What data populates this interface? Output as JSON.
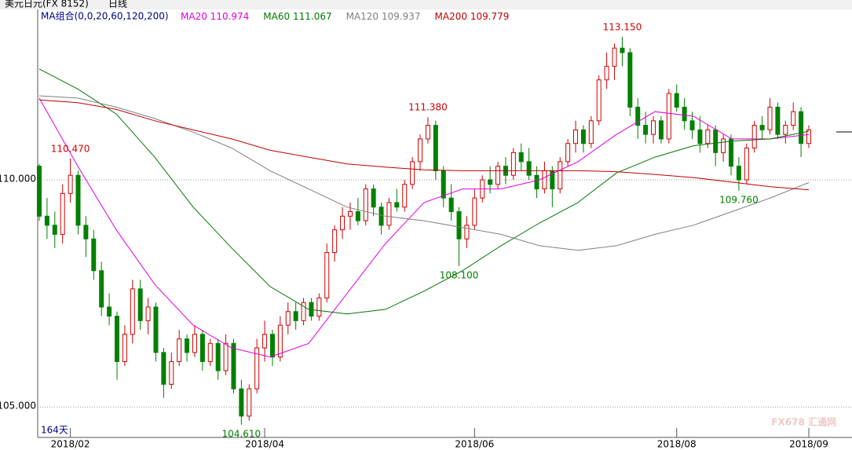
{
  "header": {
    "symbol": "美元日元(FX 8152)",
    "period": "日线",
    "ma_group": "MA组合(0,0,20,60,120,200)",
    "bar_count": "164天",
    "watermark": "FX678 汇通网"
  },
  "chart_data": {
    "type": "candlestick",
    "ylim": [
      104.33,
      113.44
    ],
    "yticks": [
      {
        "value": 110,
        "label": "110.000"
      },
      {
        "value": 105,
        "label": "105.000"
      }
    ],
    "xlim": [
      0,
      99
    ],
    "xticks": [
      {
        "value": 4,
        "label": "2018/02"
      },
      {
        "value": 29,
        "label": "2018/04"
      },
      {
        "value": 56,
        "label": "2018/06"
      },
      {
        "value": 82,
        "label": "2018/08"
      },
      {
        "value": 99,
        "label": "2018/09"
      }
    ],
    "up_color": "#d00000",
    "down_color": "#008000",
    "grid": true,
    "ohlc": [
      [
        110.3,
        110.35,
        109.1,
        109.2
      ],
      [
        109.2,
        109.6,
        108.7,
        109.0
      ],
      [
        109.0,
        109.3,
        108.5,
        108.8
      ],
      [
        108.8,
        109.9,
        108.6,
        109.7
      ],
      [
        109.7,
        110.47,
        109.5,
        110.1
      ],
      [
        110.1,
        110.2,
        108.8,
        109.0
      ],
      [
        109.0,
        109.2,
        108.3,
        108.7
      ],
      [
        108.7,
        108.9,
        107.8,
        108.0
      ],
      [
        108.0,
        108.2,
        107.0,
        107.2
      ],
      [
        107.2,
        107.5,
        106.8,
        107.0
      ],
      [
        107.0,
        107.1,
        105.6,
        106.0
      ],
      [
        106.0,
        106.8,
        105.9,
        106.6
      ],
      [
        106.6,
        107.8,
        106.4,
        107.6
      ],
      [
        107.6,
        107.8,
        106.7,
        106.9
      ],
      [
        106.9,
        107.4,
        106.6,
        107.2
      ],
      [
        107.2,
        107.3,
        106.0,
        106.2
      ],
      [
        106.2,
        106.3,
        105.2,
        105.5
      ],
      [
        105.5,
        106.2,
        105.4,
        106.0
      ],
      [
        106.0,
        106.7,
        105.9,
        106.5
      ],
      [
        106.5,
        106.6,
        106.0,
        106.2
      ],
      [
        106.2,
        106.8,
        106.1,
        106.6
      ],
      [
        106.6,
        106.7,
        105.8,
        106.0
      ],
      [
        106.0,
        106.5,
        105.9,
        106.4
      ],
      [
        106.4,
        106.5,
        105.6,
        105.8
      ],
      [
        105.8,
        106.6,
        105.7,
        106.4
      ],
      [
        106.4,
        106.5,
        105.3,
        105.4
      ],
      [
        105.4,
        105.6,
        104.61,
        104.8
      ],
      [
        104.8,
        105.5,
        104.7,
        105.4
      ],
      [
        105.4,
        106.5,
        105.3,
        106.3
      ],
      [
        106.3,
        106.9,
        106.0,
        106.6
      ],
      [
        106.6,
        106.7,
        105.9,
        106.1
      ],
      [
        106.1,
        107.0,
        106.0,
        106.8
      ],
      [
        106.8,
        107.3,
        106.6,
        107.1
      ],
      [
        107.1,
        107.3,
        106.7,
        106.9
      ],
      [
        106.9,
        107.4,
        106.8,
        107.3
      ],
      [
        107.3,
        107.4,
        106.9,
        107.0
      ],
      [
        107.0,
        107.5,
        106.9,
        107.4
      ],
      [
        107.4,
        108.6,
        107.3,
        108.4
      ],
      [
        108.4,
        109.0,
        108.2,
        108.9
      ],
      [
        108.9,
        109.4,
        108.7,
        109.2
      ],
      [
        109.2,
        109.5,
        108.9,
        109.3
      ],
      [
        109.3,
        109.6,
        109.0,
        109.1
      ],
      [
        109.1,
        109.9,
        109.0,
        109.8
      ],
      [
        109.8,
        109.9,
        109.2,
        109.4
      ],
      [
        109.4,
        109.5,
        108.8,
        109.0
      ],
      [
        109.0,
        109.6,
        108.9,
        109.5
      ],
      [
        109.5,
        109.8,
        109.3,
        109.4
      ],
      [
        109.4,
        110.0,
        109.3,
        109.9
      ],
      [
        109.9,
        110.5,
        109.8,
        110.4
      ],
      [
        110.4,
        111.0,
        110.2,
        110.9
      ],
      [
        110.9,
        111.38,
        110.8,
        111.2
      ],
      [
        111.2,
        111.3,
        110.0,
        110.2
      ],
      [
        110.2,
        110.3,
        109.4,
        109.6
      ],
      [
        109.6,
        109.9,
        109.1,
        109.3
      ],
      [
        109.3,
        109.4,
        108.1,
        108.7
      ],
      [
        108.7,
        109.2,
        108.5,
        109.0
      ],
      [
        109.0,
        109.8,
        108.9,
        109.6
      ],
      [
        109.6,
        110.1,
        109.5,
        110.0
      ],
      [
        110.0,
        110.3,
        109.7,
        109.9
      ],
      [
        109.9,
        110.4,
        109.8,
        110.3
      ],
      [
        110.3,
        110.5,
        109.9,
        110.1
      ],
      [
        110.1,
        110.7,
        110.0,
        110.6
      ],
      [
        110.6,
        110.8,
        110.2,
        110.4
      ],
      [
        110.4,
        110.7,
        110.0,
        110.1
      ],
      [
        110.1,
        110.3,
        109.6,
        109.8
      ],
      [
        109.8,
        110.4,
        109.7,
        110.2
      ],
      [
        110.2,
        110.3,
        109.4,
        109.8
      ],
      [
        109.8,
        110.5,
        109.7,
        110.4
      ],
      [
        110.4,
        110.9,
        110.3,
        110.8
      ],
      [
        110.8,
        111.3,
        110.6,
        111.1
      ],
      [
        111.1,
        111.2,
        110.6,
        110.8
      ],
      [
        110.8,
        111.4,
        110.7,
        111.3
      ],
      [
        111.3,
        112.3,
        111.2,
        112.2
      ],
      [
        112.2,
        112.8,
        112.0,
        112.5
      ],
      [
        112.5,
        113.0,
        112.2,
        112.9
      ],
      [
        112.9,
        113.15,
        112.5,
        112.8
      ],
      [
        112.8,
        112.9,
        111.4,
        111.6
      ],
      [
        111.6,
        111.8,
        110.9,
        111.2
      ],
      [
        111.2,
        111.5,
        110.8,
        111.0
      ],
      [
        111.0,
        111.4,
        110.8,
        111.3
      ],
      [
        111.3,
        111.4,
        110.8,
        110.9
      ],
      [
        110.9,
        112.0,
        110.8,
        111.9
      ],
      [
        111.9,
        112.1,
        111.5,
        111.6
      ],
      [
        111.6,
        111.8,
        111.1,
        111.3
      ],
      [
        111.3,
        111.5,
        110.9,
        111.1
      ],
      [
        111.1,
        111.4,
        110.6,
        110.8
      ],
      [
        110.8,
        111.2,
        110.7,
        111.1
      ],
      [
        111.1,
        111.2,
        110.3,
        110.6
      ],
      [
        110.6,
        111.0,
        110.4,
        110.9
      ],
      [
        110.9,
        111.0,
        110.1,
        110.3
      ],
      [
        110.3,
        110.5,
        109.76,
        110.0
      ],
      [
        110.0,
        110.8,
        109.9,
        110.7
      ],
      [
        110.7,
        111.3,
        110.6,
        111.2
      ],
      [
        111.2,
        111.4,
        110.9,
        111.1
      ],
      [
        111.1,
        111.8,
        111.0,
        111.6
      ],
      [
        111.6,
        111.7,
        110.9,
        111.0
      ],
      [
        111.0,
        111.3,
        110.8,
        111.2
      ],
      [
        111.2,
        111.7,
        111.1,
        111.5
      ],
      [
        111.5,
        111.6,
        110.5,
        110.8
      ],
      [
        110.8,
        111.2,
        110.7,
        111.1
      ]
    ],
    "annotations": [
      {
        "index": 4,
        "value": 110.47,
        "label": "110.470",
        "side": "above",
        "color": "#d00000"
      },
      {
        "index": 26,
        "value": 104.61,
        "label": "104.610",
        "side": "below",
        "color": "#008000"
      },
      {
        "index": 50,
        "value": 111.38,
        "label": "111.380",
        "side": "above",
        "color": "#d00000"
      },
      {
        "index": 54,
        "value": 108.1,
        "label": "108.100",
        "side": "below",
        "color": "#008000"
      },
      {
        "index": 75,
        "value": 113.15,
        "label": "113.150",
        "side": "above",
        "color": "#d00000"
      },
      {
        "index": 90,
        "value": 109.76,
        "label": "109.760",
        "side": "below",
        "color": "#008000"
      }
    ],
    "series": [
      {
        "name": "MA20",
        "last": 110.974,
        "color": "#e000e0",
        "values": [
          111.8,
          110.3,
          108.9,
          107.7,
          106.8,
          106.3,
          106.1,
          106.4,
          107.5,
          108.6,
          109.5,
          109.8,
          109.8,
          110.0,
          110.4,
          111.0,
          111.5,
          111.4,
          110.9,
          110.9,
          111.0
        ]
      },
      {
        "name": "MA60",
        "last": 111.067,
        "color": "#007800",
        "values": [
          112.44,
          112.0,
          111.45,
          110.5,
          109.4,
          108.5,
          107.65,
          107.15,
          107.05,
          107.15,
          107.55,
          108.0,
          108.55,
          109.05,
          109.5,
          110.15,
          110.5,
          110.75,
          110.85,
          110.9,
          111.07
        ]
      },
      {
        "name": "MA120",
        "last": 109.937,
        "color": "#808080",
        "values": [
          111.85,
          111.8,
          111.6,
          111.35,
          111.05,
          110.7,
          110.2,
          109.8,
          109.4,
          109.2,
          109.1,
          108.95,
          108.8,
          108.55,
          108.45,
          108.55,
          108.8,
          109.0,
          109.3,
          109.6,
          109.94
        ]
      },
      {
        "name": "MA200",
        "last": 109.779,
        "color": "#c00000",
        "values": [
          111.76,
          111.7,
          111.55,
          111.3,
          111.1,
          110.9,
          110.65,
          110.5,
          110.35,
          110.28,
          110.22,
          110.2,
          110.2,
          110.2,
          110.2,
          110.18,
          110.12,
          110.05,
          109.95,
          109.85,
          109.78
        ]
      }
    ]
  }
}
